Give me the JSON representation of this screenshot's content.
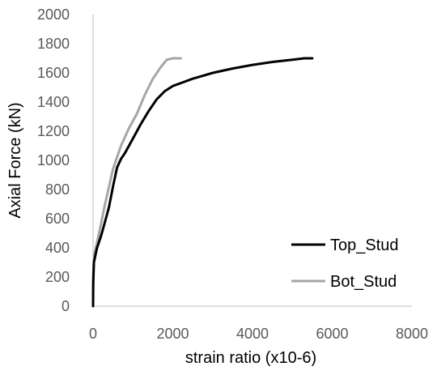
{
  "chart_data": {
    "type": "line",
    "title": "",
    "xlabel": "strain ratio (x10-6)",
    "ylabel": "Axial Force (kN)",
    "xlim": [
      0,
      8000
    ],
    "ylim": [
      0,
      2000
    ],
    "xticks": [
      "0",
      "2000",
      "4000",
      "6000",
      "8000"
    ],
    "yticks": [
      "0",
      "200",
      "400",
      "600",
      "800",
      "1000",
      "1200",
      "1400",
      "1600",
      "1800",
      "2000"
    ],
    "grid": false,
    "legend_position": "right",
    "series": [
      {
        "name": "Top_Stud",
        "color": "#000000",
        "points": [
          [
            0,
            0
          ],
          [
            5,
            150
          ],
          [
            20,
            300
          ],
          [
            100,
            400
          ],
          [
            200,
            480
          ],
          [
            300,
            580
          ],
          [
            400,
            680
          ],
          [
            500,
            820
          ],
          [
            600,
            950
          ],
          [
            700,
            1010
          ],
          [
            800,
            1050
          ],
          [
            1000,
            1150
          ],
          [
            1200,
            1250
          ],
          [
            1400,
            1340
          ],
          [
            1600,
            1420
          ],
          [
            1800,
            1475
          ],
          [
            2000,
            1510
          ],
          [
            2200,
            1530
          ],
          [
            2500,
            1560
          ],
          [
            3000,
            1600
          ],
          [
            3500,
            1630
          ],
          [
            4000,
            1655
          ],
          [
            4500,
            1675
          ],
          [
            5000,
            1690
          ],
          [
            5300,
            1700
          ],
          [
            5500,
            1700
          ]
        ]
      },
      {
        "name": "Bot_Stud",
        "color": "#a6a6a6",
        "points": [
          [
            0,
            0
          ],
          [
            5,
            200
          ],
          [
            30,
            350
          ],
          [
            150,
            500
          ],
          [
            300,
            700
          ],
          [
            500,
            940
          ],
          [
            700,
            1100
          ],
          [
            900,
            1220
          ],
          [
            1100,
            1320
          ],
          [
            1300,
            1450
          ],
          [
            1500,
            1560
          ],
          [
            1700,
            1640
          ],
          [
            1850,
            1690
          ],
          [
            2000,
            1700
          ],
          [
            2200,
            1700
          ]
        ]
      }
    ]
  }
}
